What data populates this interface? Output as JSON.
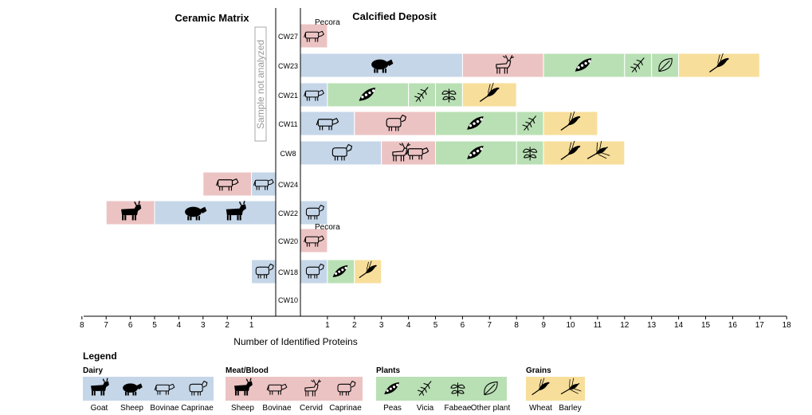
{
  "left_title": "Ceramic Matrix",
  "right_title": "Calcified Deposit",
  "xlabel": "Number of Identified Proteins",
  "not_analyzed": "Sample not analyzed",
  "asterisk": "*",
  "colors": {
    "dairy": "#c5d6e8",
    "meat": "#ecc3c3",
    "plants": "#b9e0b4",
    "grains": "#f7de9a"
  },
  "chart_data": {
    "type": "bar",
    "orientation": "horizontal-diverging-stacked",
    "samples": [
      "CW27",
      "CW23",
      "CW21",
      "CW11",
      "CW8",
      "CW24",
      "CW22",
      "CW20",
      "CW18",
      "CW10"
    ],
    "ceramic_matrix": {
      "xlim": [
        8,
        0
      ],
      "ticks": [
        8,
        7,
        6,
        5,
        4,
        3,
        2,
        1
      ],
      "bars": [
        {
          "sample": "CW24",
          "segments": [
            {
              "category": "meat",
              "from": 1,
              "to": 3,
              "icons": [
                "bovinae-outline"
              ]
            },
            {
              "category": "dairy",
              "from": 0,
              "to": 1,
              "icons": [
                "bovinae-outline"
              ]
            }
          ]
        },
        {
          "sample": "CW22",
          "segments": [
            {
              "category": "meat",
              "from": 5,
              "to": 7,
              "icons": [
                "goat-solid"
              ]
            },
            {
              "category": "dairy",
              "from": 0,
              "to": 5,
              "icons": [
                "sheep-solid",
                "goat-solid"
              ]
            }
          ]
        },
        {
          "sample": "CW18",
          "segments": [
            {
              "category": "dairy",
              "from": 0,
              "to": 1,
              "icons": [
                "caprinae-outline"
              ]
            }
          ]
        }
      ]
    },
    "calcified_deposit": {
      "xlim": [
        0,
        18
      ],
      "ticks": [
        1,
        2,
        3,
        4,
        5,
        6,
        7,
        8,
        9,
        10,
        11,
        12,
        13,
        14,
        15,
        16,
        17,
        18
      ],
      "bars": [
        {
          "sample": "CW27",
          "label": "Pecora",
          "segments": [
            {
              "category": "meat",
              "from": 0,
              "to": 1,
              "icons": [
                "bovinae-outline"
              ]
            }
          ]
        },
        {
          "sample": "CW23",
          "segments": [
            {
              "category": "dairy",
              "from": 0,
              "to": 6,
              "icons": [
                "sheep-solid"
              ]
            },
            {
              "category": "meat",
              "from": 6,
              "to": 9,
              "icons": [
                "cervid"
              ]
            },
            {
              "category": "plants",
              "from": 9,
              "to": 12,
              "icons": [
                "peas"
              ]
            },
            {
              "category": "plants",
              "from": 12,
              "to": 13,
              "icons": [
                "vicia"
              ]
            },
            {
              "category": "plants",
              "from": 13,
              "to": 14,
              "icons": [
                "other-plant"
              ]
            },
            {
              "category": "grains",
              "from": 14,
              "to": 17,
              "icons": [
                "wheat"
              ]
            }
          ]
        },
        {
          "sample": "CW21",
          "segments": [
            {
              "category": "dairy",
              "from": 0,
              "to": 1,
              "icons": [
                "bovinae-outline"
              ]
            },
            {
              "category": "plants",
              "from": 1,
              "to": 4,
              "icons": [
                "peas"
              ]
            },
            {
              "category": "plants",
              "from": 4,
              "to": 5,
              "icons": [
                "vicia"
              ]
            },
            {
              "category": "plants",
              "from": 5,
              "to": 6,
              "icons": [
                "fabeae"
              ]
            },
            {
              "category": "grains",
              "from": 6,
              "to": 8,
              "icons": [
                "wheat"
              ]
            }
          ]
        },
        {
          "sample": "CW11",
          "segments": [
            {
              "category": "dairy",
              "from": 0,
              "to": 2,
              "icons": [
                "bovinae-outline"
              ]
            },
            {
              "category": "meat",
              "from": 2,
              "to": 5,
              "icons": [
                "caprinae-outline"
              ]
            },
            {
              "category": "plants",
              "from": 5,
              "to": 8,
              "icons": [
                "peas"
              ]
            },
            {
              "category": "plants",
              "from": 8,
              "to": 9,
              "icons": [
                "vicia"
              ]
            },
            {
              "category": "grains",
              "from": 9,
              "to": 11,
              "icons": [
                "wheat"
              ]
            }
          ]
        },
        {
          "sample": "CW8",
          "segments": [
            {
              "category": "dairy",
              "from": 0,
              "to": 3,
              "icons": [
                "caprinae-outline"
              ]
            },
            {
              "category": "meat",
              "from": 3,
              "to": 5,
              "icons": [
                "cervid",
                "bovinae-outline"
              ]
            },
            {
              "category": "plants",
              "from": 5,
              "to": 8,
              "icons": [
                "peas"
              ]
            },
            {
              "category": "plants",
              "from": 8,
              "to": 9,
              "icons": [
                "fabeae"
              ]
            },
            {
              "category": "grains",
              "from": 9,
              "to": 12,
              "icons": [
                "wheat",
                "barley"
              ]
            }
          ]
        },
        {
          "sample": "CW22",
          "segments": [
            {
              "category": "dairy",
              "from": 0,
              "to": 1,
              "icons": [
                "caprinae-outline"
              ]
            }
          ]
        },
        {
          "sample": "CW20",
          "label": "Pecora",
          "segments": [
            {
              "category": "meat",
              "from": 0,
              "to": 1,
              "icons": [
                "bovinae-outline"
              ]
            }
          ]
        },
        {
          "sample": "CW18",
          "segments": [
            {
              "category": "dairy",
              "from": 0,
              "to": 1,
              "icons": [
                "caprinae-outline"
              ]
            },
            {
              "category": "plants",
              "from": 1,
              "to": 2,
              "icons": [
                "peas"
              ]
            },
            {
              "category": "grains",
              "from": 2,
              "to": 3,
              "icons": [
                "wheat"
              ]
            }
          ]
        }
      ]
    }
  },
  "legend": {
    "title": "Legend",
    "groups": [
      {
        "title": "Dairy",
        "category": "dairy",
        "items": [
          {
            "label": "Goat",
            "icon": "goat-solid"
          },
          {
            "label": "Sheep",
            "icon": "sheep-solid"
          },
          {
            "label": "Bovinae",
            "icon": "bovinae-outline"
          },
          {
            "label": "Caprinae",
            "icon": "caprinae-outline"
          }
        ]
      },
      {
        "title": "Meat/Blood",
        "category": "meat",
        "items": [
          {
            "label": "Sheep",
            "icon": "goat-solid"
          },
          {
            "label": "Bovinae",
            "icon": "bovinae-outline"
          },
          {
            "label": "Cervid",
            "icon": "cervid"
          },
          {
            "label": "Caprinae",
            "icon": "caprinae-outline"
          }
        ]
      },
      {
        "title": "Plants",
        "category": "plants",
        "items": [
          {
            "label": "Peas",
            "icon": "peas"
          },
          {
            "label": "Vicia",
            "icon": "vicia"
          },
          {
            "label": "Fabeae",
            "icon": "fabeae"
          },
          {
            "label": "Other plant",
            "icon": "other-plant"
          }
        ]
      },
      {
        "title": "Grains",
        "category": "grains",
        "items": [
          {
            "label": "Wheat",
            "icon": "wheat"
          },
          {
            "label": "Barley",
            "icon": "barley"
          }
        ]
      }
    ]
  }
}
